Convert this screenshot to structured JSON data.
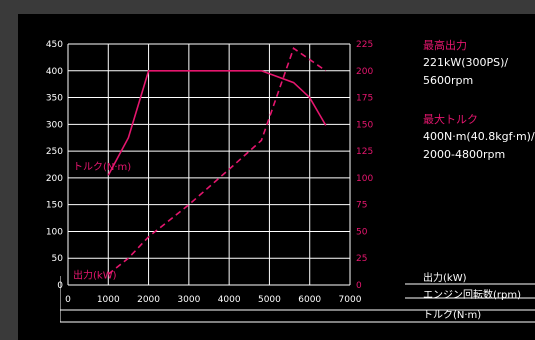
{
  "chart_data": {
    "type": "line",
    "x": {
      "ticks": [
        0,
        1000,
        2000,
        3000,
        4000,
        5000,
        6000,
        7000
      ],
      "range": [
        0,
        7000
      ]
    },
    "y_left": {
      "ticks": [
        0,
        50,
        100,
        150,
        200,
        250,
        300,
        350,
        400,
        450
      ],
      "range": [
        0,
        450
      ]
    },
    "y_right": {
      "ticks": [
        0,
        25,
        50,
        75,
        100,
        125,
        150,
        175,
        200,
        225
      ],
      "range": [
        0,
        225
      ]
    },
    "series": [
      {
        "name": "トルク(N·m)",
        "axis": "left",
        "style": "solid",
        "points": [
          [
            1000,
            205
          ],
          [
            1500,
            275
          ],
          [
            2000,
            400
          ],
          [
            4800,
            400
          ],
          [
            5600,
            378
          ],
          [
            6000,
            350
          ],
          [
            6400,
            298
          ]
        ]
      },
      {
        "name": "出力(kW)",
        "axis": "right",
        "style": "dashed",
        "points": [
          [
            1000,
            10
          ],
          [
            1500,
            25
          ],
          [
            2000,
            45
          ],
          [
            3000,
            75
          ],
          [
            4000,
            108
          ],
          [
            4800,
            135
          ],
          [
            5600,
            221
          ],
          [
            6400,
            200
          ]
        ]
      }
    ],
    "grid": true,
    "line_color": "#e5166e"
  },
  "specs": [
    {
      "title": "最高出力",
      "lines": [
        "221kW(300PS)/",
        "5600rpm"
      ]
    },
    {
      "title": "最大トルク",
      "lines": [
        "400N·m(40.8kgf·m)/",
        "2000-4800rpm"
      ]
    }
  ],
  "unit_legend": {
    "power": "出力(kW)",
    "rpm": "エンジン回転数(rpm)",
    "torque": "トルク(N·m)"
  }
}
